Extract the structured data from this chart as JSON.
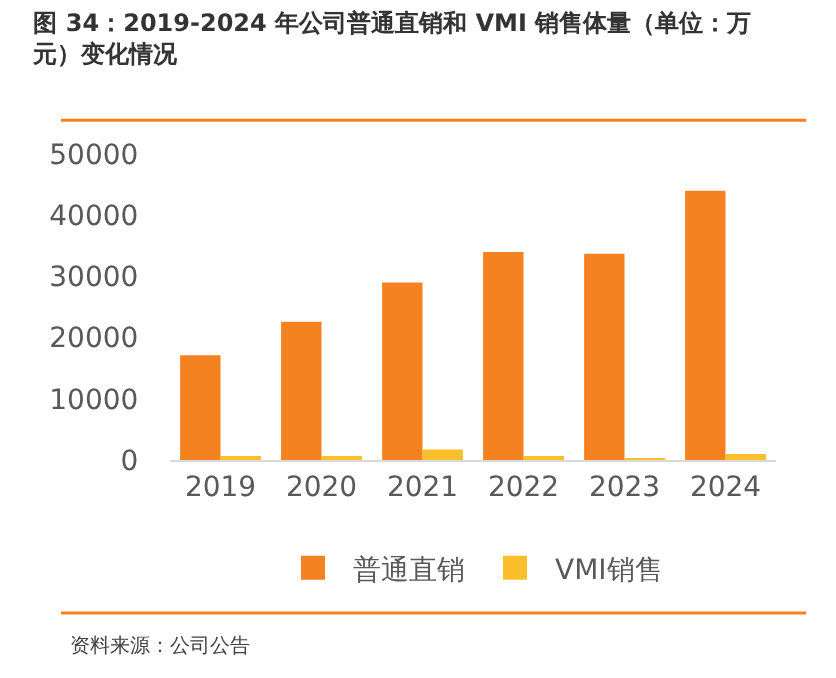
{
  "chart_data": {
    "type": "bar",
    "title": "图 34：2019-2024 年公司普通直销和 VMI 销售体量（单位：万元）变化情况",
    "categories": [
      "2019",
      "2020",
      "2021",
      "2022",
      "2023",
      "2024"
    ],
    "series": [
      {
        "name": "普通直销",
        "color": "#f58220",
        "values": [
          17100,
          22600,
          29000,
          34000,
          33700,
          44000
        ]
      },
      {
        "name": "VMI销售",
        "color": "#fbbf2c",
        "values": [
          500,
          500,
          1700,
          500,
          300,
          1000
        ]
      }
    ],
    "ylim": [
      0,
      50000
    ],
    "yticks": [
      0,
      10000,
      20000,
      30000,
      40000,
      50000
    ],
    "legend": "bottom",
    "annotations": [
      "资料来源：公司公告"
    ]
  }
}
